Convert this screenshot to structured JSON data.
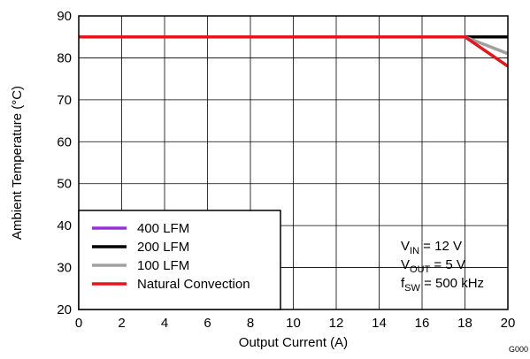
{
  "chart_data": {
    "type": "line",
    "xlabel": "Output Current (A)",
    "ylabel": "Ambient Temperature (°C)",
    "xlim": [
      0,
      20
    ],
    "ylim": [
      20,
      90
    ],
    "x_ticks": [
      0,
      2,
      4,
      6,
      8,
      10,
      12,
      14,
      16,
      18,
      20
    ],
    "y_ticks": [
      20,
      30,
      40,
      50,
      60,
      70,
      80,
      90
    ],
    "grid": true,
    "legend_position": "bottom-left",
    "series": [
      {
        "name": "400 LFM",
        "color": "#9b2fd6",
        "x": [
          0,
          20
        ],
        "y": [
          85,
          85
        ]
      },
      {
        "name": "200 LFM",
        "color": "#000000",
        "x": [
          0,
          20
        ],
        "y": [
          85,
          85
        ]
      },
      {
        "name": "100 LFM",
        "color": "#a0a0a0",
        "x": [
          0,
          18,
          20
        ],
        "y": [
          85,
          85,
          81
        ]
      },
      {
        "name": "Natural Convection",
        "color": "#e8141c",
        "x": [
          0,
          18,
          20
        ],
        "y": [
          85,
          85,
          78
        ]
      }
    ],
    "annotations": [
      {
        "base": "V",
        "sub": "IN",
        "rest": " = 12 V"
      },
      {
        "base": "V",
        "sub": "OUT",
        "rest": " = 5 V"
      },
      {
        "base": "f",
        "sub": "SW",
        "rest": " = 500 kHz"
      }
    ],
    "figure_code": "G000"
  }
}
